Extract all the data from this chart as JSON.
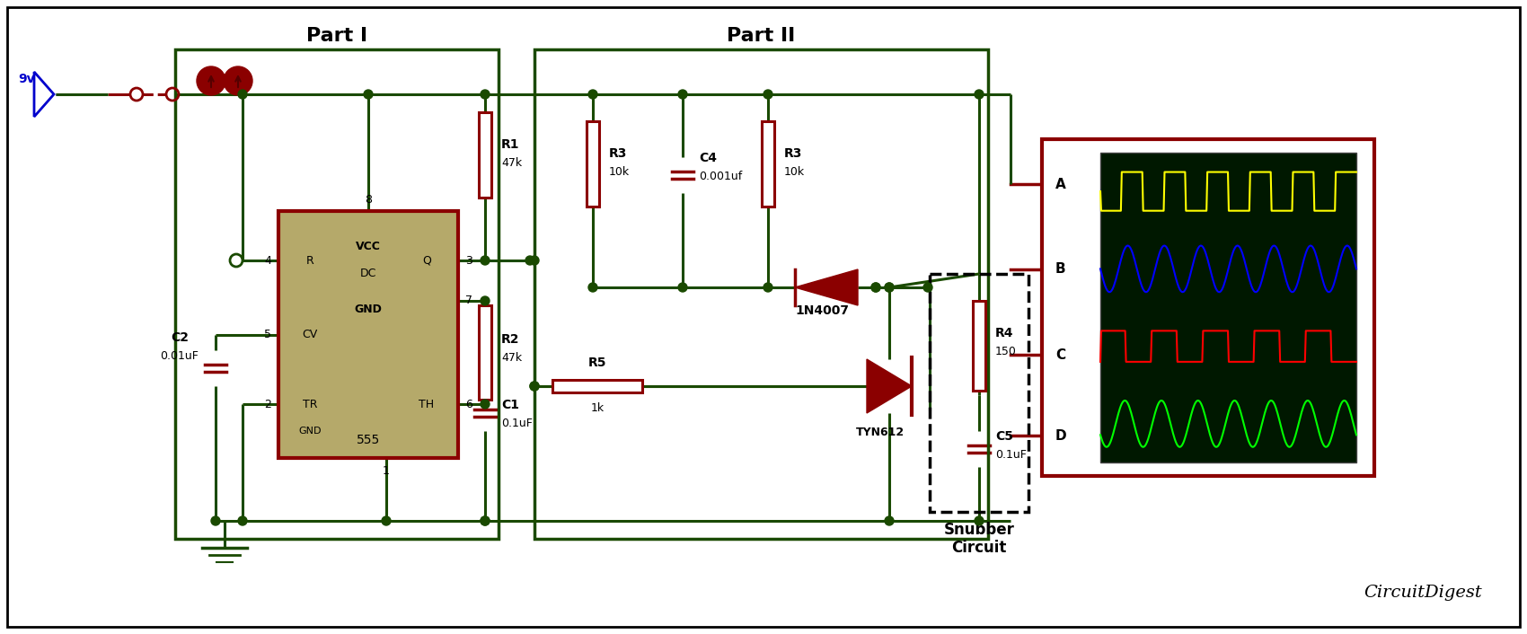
{
  "bg_color": "#ffffff",
  "dg": "#1a4a00",
  "dr": "#8b0000",
  "db": "#0000cc",
  "ic_fill": "#b5a96a",
  "ic_border": "#8b0000",
  "part1_label": "Part I",
  "part2_label": "Part II",
  "snubber_label": "Snubber\nCircuit",
  "brand_label": "CircuitDigest",
  "voltage_label": "9v",
  "lw": 2.2
}
